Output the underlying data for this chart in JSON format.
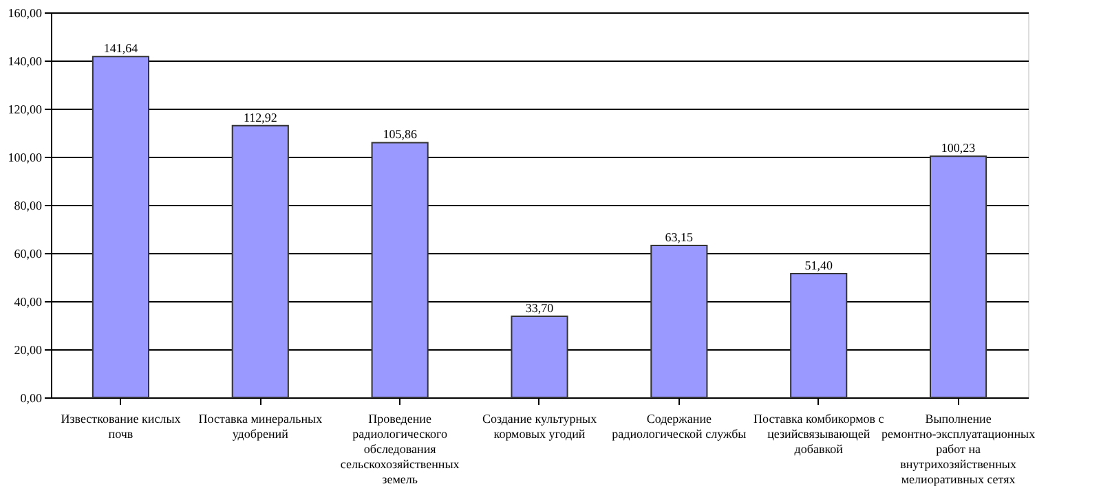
{
  "chart_data": {
    "type": "bar",
    "categories": [
      "Известкование кислых почв",
      "Поставка минеральных удобрений",
      "Проведение радиологического обследования сельскохозяйственных земель",
      "Создание культурных кормовых угодий",
      "Содержание радиологической службы",
      "Поставка комбикормов с цезийсвязывающей добавкой",
      "Выполнение ремонтно-эксплуатационных работ на внутрихозяйственных мелиоративных сетях"
    ],
    "values": [
      141.64,
      112.92,
      105.86,
      33.7,
      63.15,
      51.4,
      100.23
    ],
    "value_labels": [
      "141,64",
      "112,92",
      "105,86",
      "33,70",
      "63,15",
      "51,40",
      "100,23"
    ],
    "color": "#9999ff",
    "ylim": [
      0,
      160
    ],
    "yticks": [
      {
        "value": 0,
        "label": "0,00"
      },
      {
        "value": 20,
        "label": "20,00"
      },
      {
        "value": 40,
        "label": "40,00"
      },
      {
        "value": 60,
        "label": "60,00"
      },
      {
        "value": 80,
        "label": "80,00"
      },
      {
        "value": 100,
        "label": "100,00"
      },
      {
        "value": 120,
        "label": "120,00"
      },
      {
        "value": 140,
        "label": "140,00"
      },
      {
        "value": 160,
        "label": "160,00"
      }
    ],
    "grid": "y"
  }
}
